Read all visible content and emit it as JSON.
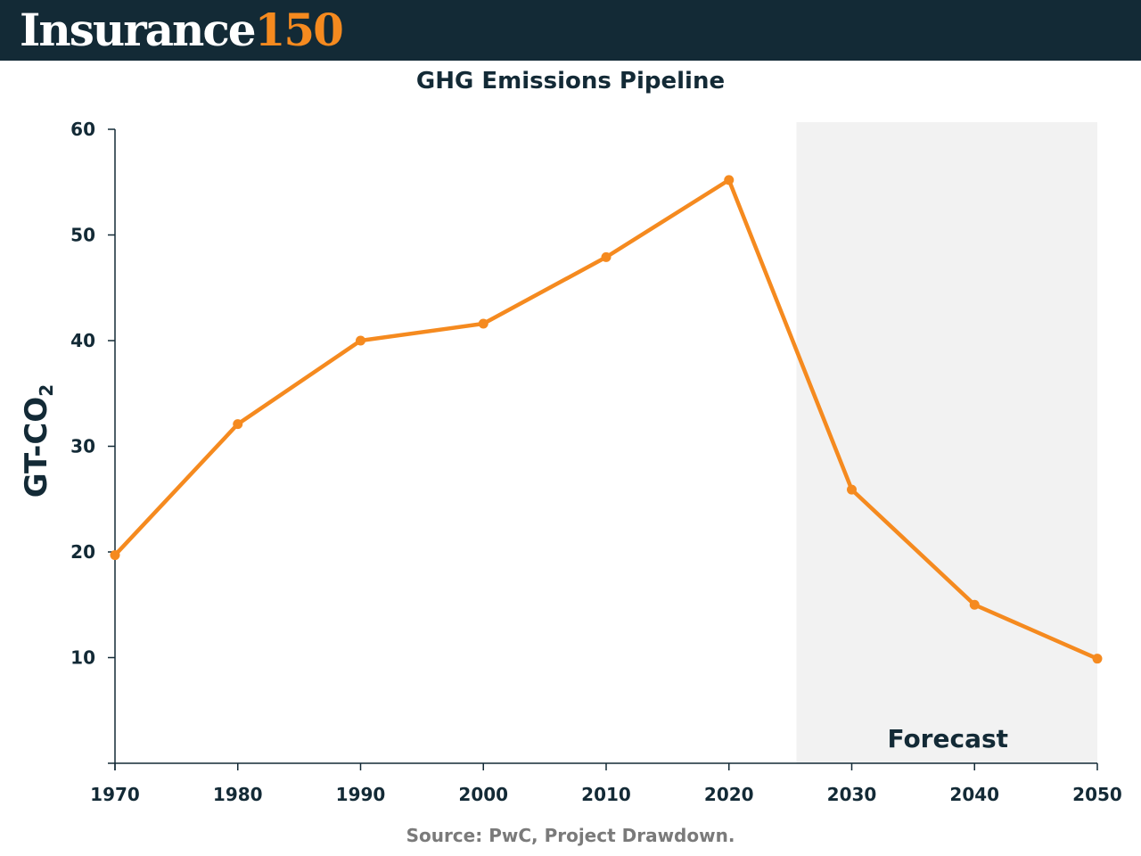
{
  "header": {
    "brand_name": "Insurance",
    "brand_number": "150",
    "brand_color": "#f58a1f",
    "background_color": "#132a36"
  },
  "source": "Source: PwC, Project Drawdown.",
  "chart_data": {
    "type": "line",
    "title": "GHG Emissions Pipeline",
    "xlabel": "",
    "ylabel": "GT-CO",
    "ylabel_subscript": "2",
    "x": [
      1970,
      1980,
      1990,
      2000,
      2010,
      2020,
      2030,
      2040,
      2050
    ],
    "x_tick_labels": [
      "1970",
      "1980",
      "1990",
      "2000",
      "2010",
      "2020",
      "2030",
      "2040",
      "2050"
    ],
    "series": [
      {
        "values": [
          19.7,
          32.1,
          40.0,
          41.6,
          47.9,
          55.2,
          25.9,
          15.0,
          9.9
        ],
        "color": "#f58a1f"
      }
    ],
    "y_ticks": [
      10,
      20,
      30,
      40,
      50,
      60
    ],
    "y_tick_labels": [
      "10",
      "20",
      "30",
      "40",
      "50",
      "60"
    ],
    "xlim": [
      1970,
      2050
    ],
    "ylim": [
      0,
      60
    ],
    "grid": false,
    "forecast_region": {
      "start": 2025.5,
      "end": 2050,
      "label": "Forecast",
      "color": "#f2f2f2"
    }
  }
}
